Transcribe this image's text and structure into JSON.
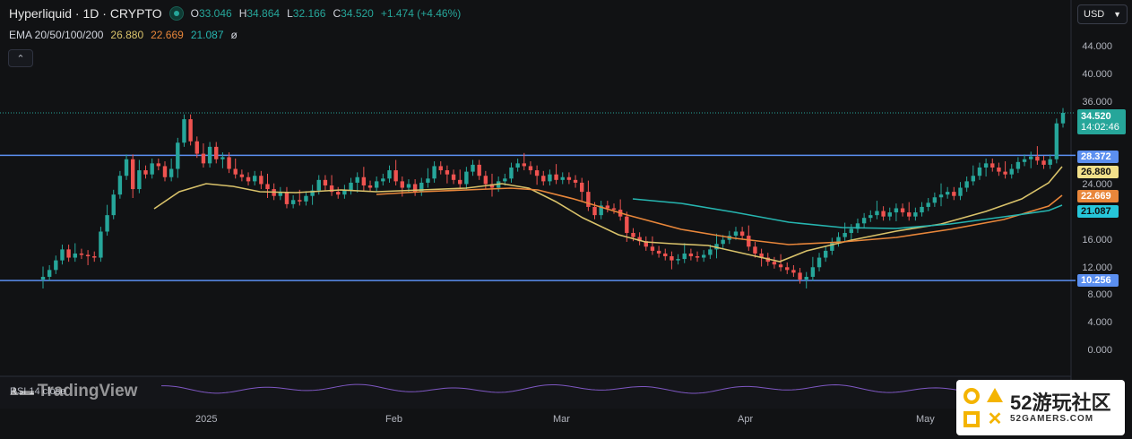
{
  "header": {
    "title": "Hyperliquid · 1D · CRYPTO",
    "ohlc": {
      "o_label": "O",
      "o": "33.046",
      "h_label": "H",
      "h": "34.864",
      "l_label": "L",
      "l": "32.166",
      "c_label": "C",
      "c": "34.520",
      "change": "+1.474 (+4.46%)"
    },
    "ema_label": "EMA 20/50/100/200",
    "ema_values": [
      "26.880",
      "22.669",
      "21.087"
    ],
    "ema_null": "ø",
    "currency": "USD"
  },
  "colors": {
    "bg": "#111214",
    "up": "#26a69a",
    "down": "#ef5350",
    "ema20": "#d9c26a",
    "ema50": "#e8863a",
    "ema100": "#26b5b0",
    "hline": "#5b8ff0"
  },
  "chart_data": {
    "type": "candlestick",
    "title": "Hyperliquid · 1D · CRYPTO",
    "y_ticks": [
      "44.000",
      "40.000",
      "36.000",
      "24.000",
      "20.000",
      "16.000",
      "12.000",
      "8.000",
      "4.000",
      "0.000"
    ],
    "ylim": [
      -1,
      46
    ],
    "x_ticks": [
      "2025",
      "Feb",
      "Mar",
      "Apr",
      "May"
    ],
    "horizontal_lines": [
      28.372,
      10.256
    ],
    "last_price": 34.52,
    "countdown": "14:02:46",
    "price_labels": {
      "r1": "28.372",
      "ema20": "26.880",
      "ema50": "22.669",
      "ema100": "21.087",
      "s1": "10.256",
      "last": "34.520"
    },
    "candles_close": [
      10.8,
      11.8,
      13.2,
      14.8,
      13.6,
      14.2,
      14.0,
      13.8,
      13.6,
      17.4,
      19.8,
      22.8,
      25.4,
      27.8,
      23.6,
      26.2,
      25.6,
      27.2,
      26.8,
      25.2,
      26.4,
      30.2,
      33.6,
      30.4,
      28.6,
      27.2,
      29.6,
      27.8,
      28.1,
      26.4,
      25.6,
      25.2,
      24.6,
      25.4,
      24.2,
      23.6,
      22.6,
      23.2,
      21.4,
      22.0,
      21.8,
      22.6,
      23.4,
      24.8,
      24.0,
      23.2,
      22.8,
      23.4,
      24.4,
      25.2,
      24.0,
      23.8,
      24.6,
      25.0,
      26.2,
      24.6,
      23.8,
      24.2,
      23.2,
      24.4,
      25.0,
      26.8,
      26.2,
      25.6,
      24.8,
      24.2,
      26.0,
      27.0,
      25.4,
      24.2,
      23.8,
      24.6,
      25.0,
      26.6,
      27.2,
      26.8,
      26.2,
      25.4,
      24.6,
      25.6,
      24.8,
      25.2,
      24.8,
      24.4,
      23.2,
      21.0,
      19.8,
      21.2,
      20.8,
      20.6,
      19.6,
      17.2,
      16.6,
      16.0,
      15.2,
      14.6,
      14.2,
      13.8,
      13.2,
      13.4,
      14.2,
      13.8,
      13.6,
      14.0,
      14.8,
      15.6,
      16.2,
      16.8,
      17.4,
      16.8,
      15.2,
      14.2,
      13.6,
      13.0,
      12.6,
      12.2,
      11.8,
      11.4,
      10.4,
      10.8,
      12.2,
      13.6,
      14.6,
      15.8,
      16.6,
      17.2,
      17.8,
      18.6,
      19.4,
      19.8,
      20.4,
      19.6,
      20.2,
      20.8,
      20.2,
      19.6,
      20.2,
      21.0,
      21.6,
      22.4,
      22.8,
      23.2,
      22.6,
      23.8,
      24.6,
      25.4,
      26.6,
      27.2,
      26.6,
      26.0,
      25.6,
      26.4,
      27.4,
      27.8,
      28.2,
      27.6,
      27.0,
      27.8,
      33.0,
      34.52
    ],
    "ema20": [
      [
        172,
        233
      ],
      [
        200,
        214
      ],
      [
        230,
        205
      ],
      [
        260,
        208
      ],
      [
        290,
        214
      ],
      [
        330,
        215
      ],
      [
        380,
        212
      ],
      [
        420,
        214
      ],
      [
        470,
        212
      ],
      [
        520,
        210
      ],
      [
        560,
        205
      ],
      [
        590,
        210
      ],
      [
        620,
        225
      ],
      [
        650,
        243
      ],
      [
        690,
        262
      ],
      [
        720,
        270
      ],
      [
        750,
        272
      ],
      [
        790,
        274
      ],
      [
        830,
        283
      ],
      [
        870,
        292
      ],
      [
        900,
        280
      ],
      [
        950,
        268
      ],
      [
        1000,
        258
      ],
      [
        1050,
        250
      ],
      [
        1100,
        236
      ],
      [
        1140,
        222
      ],
      [
        1170,
        204
      ],
      [
        1185,
        186
      ]
    ],
    "ema50": [
      [
        420,
        217
      ],
      [
        470,
        214
      ],
      [
        520,
        212
      ],
      [
        570,
        210
      ],
      [
        600,
        212
      ],
      [
        640,
        222
      ],
      [
        700,
        240
      ],
      [
        760,
        256
      ],
      [
        820,
        266
      ],
      [
        880,
        273
      ],
      [
        940,
        270
      ],
      [
        1000,
        265
      ],
      [
        1060,
        256
      ],
      [
        1120,
        245
      ],
      [
        1170,
        230
      ],
      [
        1185,
        218
      ]
    ],
    "ema100": [
      [
        706,
        222
      ],
      [
        760,
        227
      ],
      [
        820,
        237
      ],
      [
        880,
        248
      ],
      [
        940,
        254
      ],
      [
        1000,
        255
      ],
      [
        1060,
        250
      ],
      [
        1120,
        242
      ],
      [
        1170,
        235
      ],
      [
        1185,
        229
      ]
    ]
  },
  "x_axis": {
    "labels": [
      "2025",
      "Feb",
      "Mar",
      "Apr",
      "May"
    ]
  },
  "watermark": "TradingView",
  "rsi": {
    "label": "RSI 14 close"
  },
  "badge": {
    "big": "52游玩社区",
    "small": "52GAMERS.COM"
  }
}
